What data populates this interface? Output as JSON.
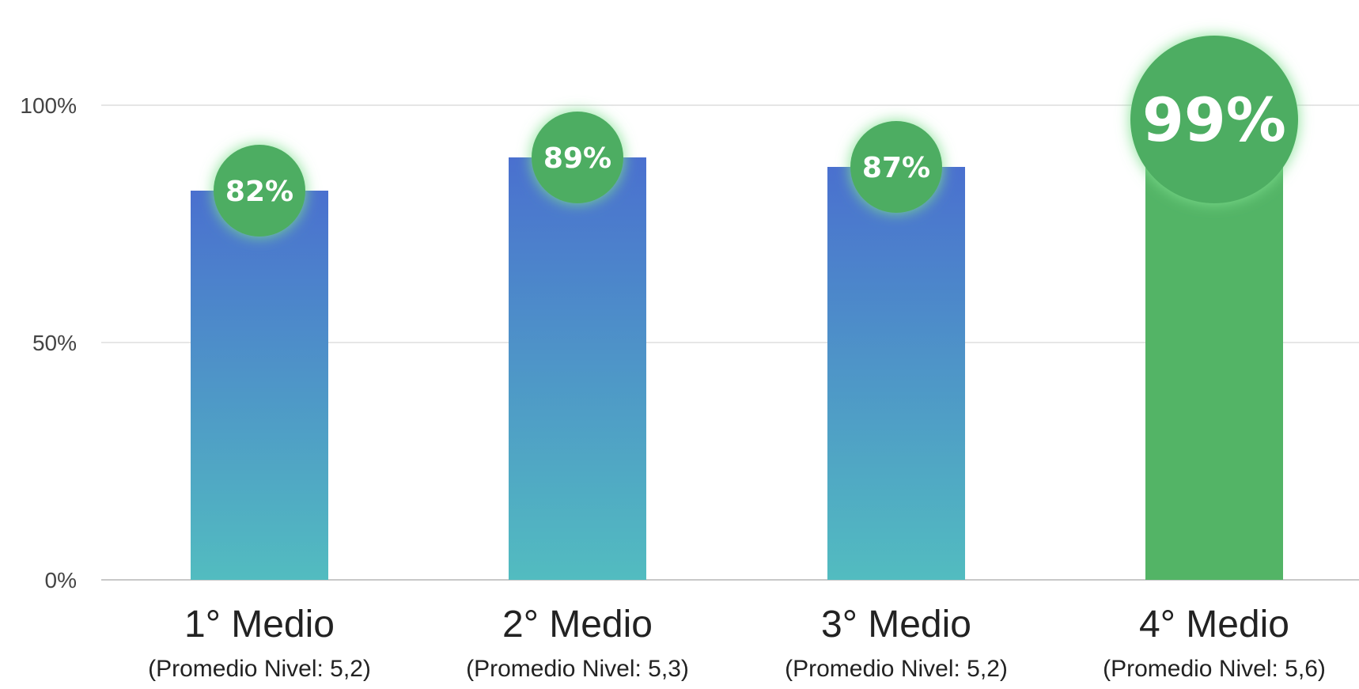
{
  "chart_data": {
    "type": "bar",
    "title": "",
    "xlabel": "",
    "ylabel": "",
    "ylim": [
      0,
      100
    ],
    "grid": true,
    "yticks": [
      0,
      50,
      100
    ],
    "ytick_labels": [
      "0%",
      "50%",
      "100%"
    ],
    "categories": [
      "1° Medio",
      "2° Medio",
      "3° Medio",
      "4° Medio"
    ],
    "category_sublabels": [
      "(Promedio Nivel: 5,2)",
      "(Promedio Nivel: 5,3)",
      "(Promedio Nivel: 5,2)",
      "(Promedio Nivel: 5,6)"
    ],
    "values": [
      82,
      89,
      87,
      99
    ],
    "data_labels": [
      "82%",
      "89%",
      "87%",
      "99%"
    ],
    "highlighted_index": 3,
    "colors": {
      "bar_gradient_top": "#4a70cf",
      "bar_gradient_bottom": "#52bcc0",
      "highlight_bar": "#53b466",
      "bubble": "#4ead62",
      "bubble_glow": "#7fe08f",
      "grid": "#dedede",
      "axis": "#c8c8c8"
    }
  }
}
